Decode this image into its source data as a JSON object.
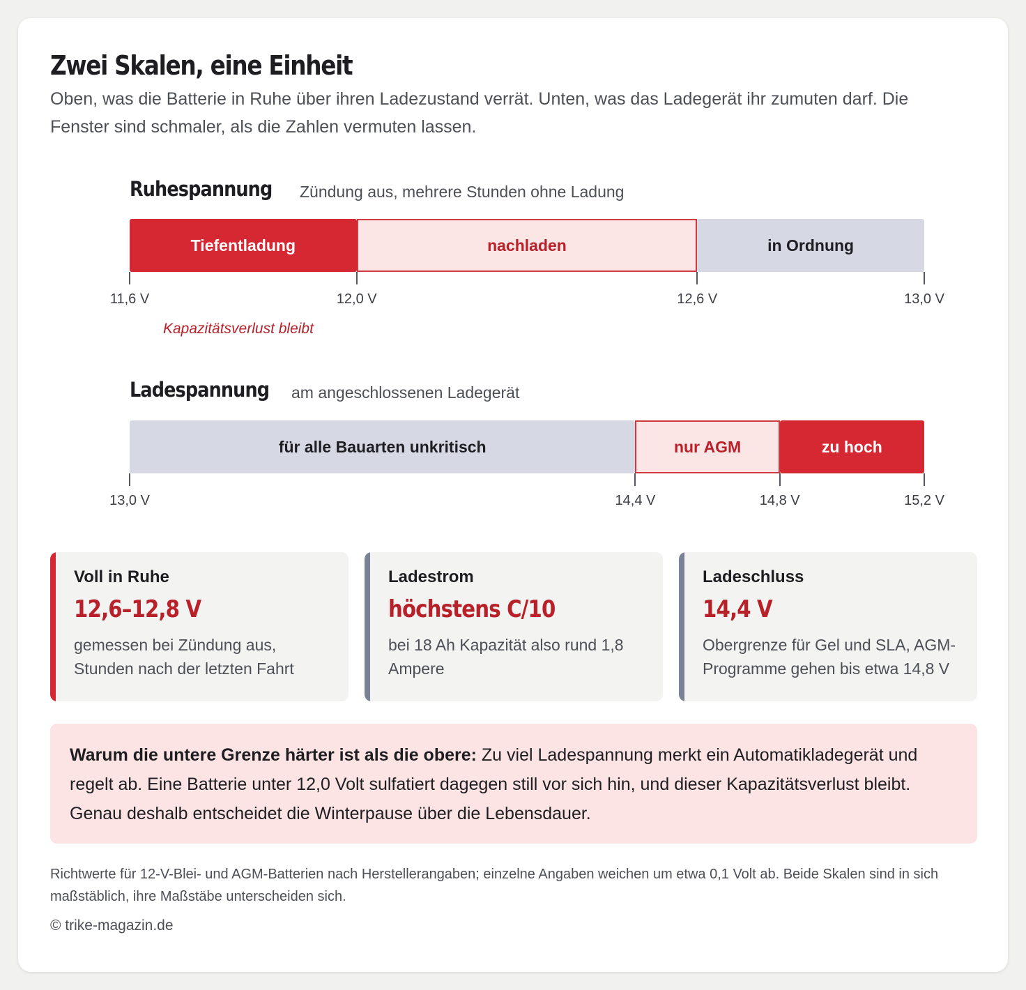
{
  "header": {
    "title": "Zwei Skalen, eine Einheit",
    "subtitle": "Oben, was die Batterie in Ruhe über ihren Ladezustand verrät. Unten, was das Ladegerät ihr zumuten darf. Die Fenster sind schmaler, als die Zahlen vermuten lassen."
  },
  "colors": {
    "accent_red": "#d52832",
    "warn_fill": "#fbe5e5",
    "ok_fill": "#d6d9e3",
    "callout_fill": "#fbe4e3"
  },
  "rest_scale": {
    "title": "Ruhespannung",
    "subtitle": "Zündung aus, mehrere Stunden ohne Ladung",
    "min": 11.6,
    "max": 13.0,
    "segments": [
      {
        "label": "Tiefentladung",
        "from": 11.6,
        "to": 12.0,
        "style": "strong"
      },
      {
        "label": "nachladen",
        "from": 12.0,
        "to": 12.6,
        "style": "warn"
      },
      {
        "label": "in Ordnung",
        "from": 12.6,
        "to": 13.0,
        "style": "ok"
      }
    ],
    "ticks": [
      {
        "value": 11.6,
        "label": "11,6 V"
      },
      {
        "value": 12.0,
        "label": "12,0 V"
      },
      {
        "value": 12.6,
        "label": "12,6 V"
      },
      {
        "value": 13.0,
        "label": "13,0 V"
      }
    ],
    "note": "Kapazitätsverlust bleibt"
  },
  "charge_scale": {
    "title": "Ladespannung",
    "subtitle": "am angeschlossenen Ladegerät",
    "min": 13.0,
    "max": 15.2,
    "segments": [
      {
        "label": "für alle Bauarten unkritisch",
        "from": 13.0,
        "to": 14.4,
        "style": "ok"
      },
      {
        "label": "nur AGM",
        "from": 14.4,
        "to": 14.8,
        "style": "warn"
      },
      {
        "label": "zu hoch",
        "from": 14.8,
        "to": 15.2,
        "style": "strong"
      }
    ],
    "ticks": [
      {
        "value": 13.0,
        "label": "13,0 V"
      },
      {
        "value": 14.4,
        "label": "14,4 V"
      },
      {
        "value": 14.8,
        "label": "14,8 V"
      },
      {
        "value": 15.2,
        "label": "15,2 V"
      }
    ]
  },
  "facts": [
    {
      "label": "Voll in Ruhe",
      "value": "12,6–12,8 V",
      "text": "gemessen bei Zündung aus, Stunden nach der letzten Fahrt",
      "accent": "red"
    },
    {
      "label": "Ladestrom",
      "value": "höchstens C/10",
      "text": "bei 18 Ah Kapazität also rund 1,8 Ampere",
      "accent": "gray"
    },
    {
      "label": "Ladeschluss",
      "value": "14,4 V",
      "text": "Obergrenze für Gel und SLA, AGM-Programme gehen bis etwa 14,8 V",
      "accent": "gray"
    }
  ],
  "callout": {
    "lead": "Warum die untere Grenze härter ist als die obere:",
    "text": " Zu viel Ladespannung merkt ein Automatikladegerät und regelt ab. Eine Batterie unter 12,0 Volt sulfatiert dagegen still vor sich hin, und dieser Kapazitätsverlust bleibt. Genau deshalb entscheidet die Winterpause über die Lebensdauer."
  },
  "footnote": "Richtwerte für 12-V-Blei- und AGM-Batterien nach Herstellerangaben; einzelne Angaben weichen um etwa 0,1 Volt ab. Beide Skalen sind in sich maßstäblich, ihre Maßstäbe unterscheiden sich.",
  "copyright": "© trike-magazin.de"
}
